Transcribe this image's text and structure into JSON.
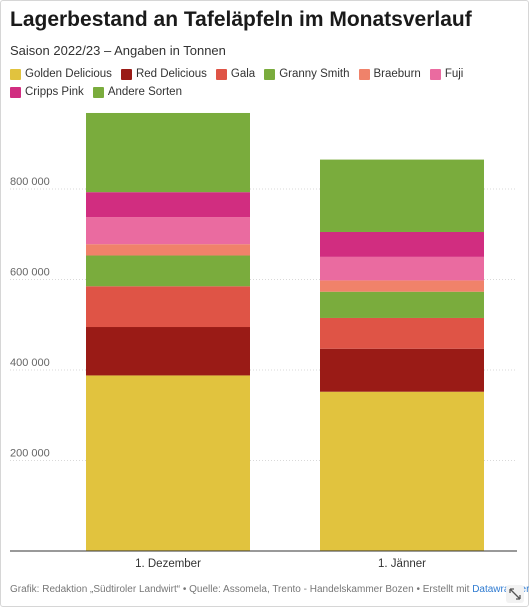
{
  "header": {
    "title": "Lagerbestand an Tafeläpfeln im Monatsverlauf",
    "subtitle": "Saison 2022/23 – Angaben in Tonnen"
  },
  "legend": [
    {
      "label": "Golden Delicious",
      "color": "#e1c33e"
    },
    {
      "label": "Red Delicious",
      "color": "#9a1b16"
    },
    {
      "label": "Gala",
      "color": "#df5446"
    },
    {
      "label": "Granny Smith",
      "color": "#7aac3d"
    },
    {
      "label": "Braeburn",
      "color": "#f0826a"
    },
    {
      "label": "Fuji",
      "color": "#ea6ba0"
    },
    {
      "label": "Cripps Pink",
      "color": "#d12d80"
    },
    {
      "label": "Andere Sorten",
      "color": "#7aac3d"
    }
  ],
  "footer": {
    "text": "Grafik: Redaktion „Südtiroler Landwirt“ • Quelle: Assomela, Trento - Handelskammer Bozen • Erstellt mit ",
    "link": "Datawrapper"
  },
  "chart_data": {
    "type": "bar",
    "stacked": true,
    "title": "Lagerbestand an Tafeläpfeln im Monatsverlauf",
    "subtitle": "Saison 2022/23 – Angaben in Tonnen",
    "categories": [
      "1. Dezember",
      "1. Jänner"
    ],
    "ylim": [
      0,
      1000000
    ],
    "yticks": [
      200000,
      400000,
      600000,
      800000
    ],
    "ytick_labels": [
      "200 000",
      "400 000",
      "600 000",
      "800 000"
    ],
    "grid": true,
    "legend_position": "top",
    "series": [
      {
        "name": "Golden Delicious",
        "color": "#e1c33e",
        "values": [
          388000,
          352000
        ]
      },
      {
        "name": "Red Delicious",
        "color": "#9a1b16",
        "values": [
          107000,
          95000
        ]
      },
      {
        "name": "Gala",
        "color": "#df5446",
        "values": [
          90000,
          68000
        ]
      },
      {
        "name": "Granny Smith",
        "color": "#7aac3d",
        "values": [
          68000,
          58000
        ]
      },
      {
        "name": "Braeburn",
        "color": "#f0826a",
        "values": [
          25000,
          25000
        ]
      },
      {
        "name": "Fuji",
        "color": "#ea6ba0",
        "values": [
          60000,
          52000
        ]
      },
      {
        "name": "Cripps Pink",
        "color": "#d12d80",
        "values": [
          55000,
          55000
        ]
      },
      {
        "name": "Andere Sorten",
        "color": "#7aac3d",
        "values": [
          175000,
          160000
        ]
      }
    ]
  }
}
